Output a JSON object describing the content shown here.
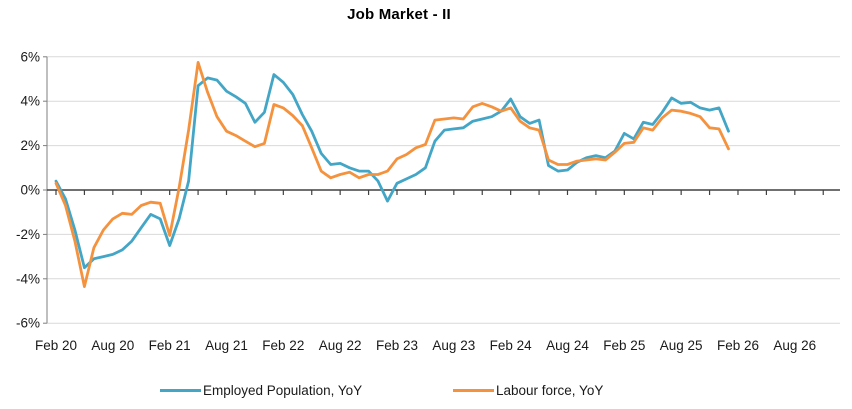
{
  "chart_data": {
    "type": "line",
    "title": "Job Market - II",
    "xlabel": "",
    "ylabel": "",
    "ylim": [
      -6,
      6
    ],
    "grid": "horizontal",
    "legend_position": "bottom",
    "frequency": "monthly",
    "start_label": "Feb 20",
    "end_label": "Jan 26",
    "x_tick_labels": [
      "Feb 20",
      "Aug 20",
      "Feb 21",
      "Aug 21",
      "Feb 22",
      "Aug 22",
      "Feb 23",
      "Aug 23",
      "Feb 24",
      "Aug 24",
      "Feb 25",
      "Aug 25",
      "Feb 26",
      "Aug 26"
    ],
    "y_tick_labels": [
      "6%",
      "4%",
      "2%",
      "0%",
      "-2%",
      "-4%",
      "-6%"
    ],
    "y_tick_values": [
      6,
      4,
      2,
      0,
      -2,
      -4,
      -6
    ],
    "series": [
      {
        "name": "Employed Population, YoY",
        "color": "#44a6c6",
        "values": [
          0.4,
          -0.4,
          -1.8,
          -3.5,
          -3.1,
          -3.0,
          -2.9,
          -2.7,
          -2.3,
          -1.7,
          -1.1,
          -1.3,
          -2.5,
          -1.3,
          0.4,
          4.7,
          5.05,
          4.95,
          4.45,
          4.2,
          3.9,
          3.05,
          3.5,
          5.2,
          4.85,
          4.3,
          3.4,
          2.65,
          1.65,
          1.15,
          1.2,
          1.0,
          0.85,
          0.85,
          0.4,
          -0.5,
          0.3,
          0.5,
          0.7,
          1.0,
          2.2,
          2.7,
          2.75,
          2.8,
          3.1,
          3.2,
          3.3,
          3.55,
          4.1,
          3.3,
          3.0,
          3.15,
          1.1,
          0.85,
          0.9,
          1.25,
          1.45,
          1.55,
          1.45,
          1.75,
          2.55,
          2.3,
          3.05,
          2.95,
          3.5,
          4.15,
          3.9,
          3.95,
          3.7,
          3.6,
          3.7,
          2.65
        ]
      },
      {
        "name": "Labour force, YoY",
        "color": "#f5923e",
        "values": [
          0.3,
          -0.7,
          -2.3,
          -4.35,
          -2.6,
          -1.8,
          -1.3,
          -1.05,
          -1.1,
          -0.7,
          -0.55,
          -0.6,
          -2.05,
          0.1,
          2.7,
          5.75,
          4.4,
          3.3,
          2.65,
          2.45,
          2.2,
          1.95,
          2.1,
          3.85,
          3.7,
          3.35,
          2.9,
          1.9,
          0.85,
          0.55,
          0.7,
          0.8,
          0.55,
          0.7,
          0.7,
          0.85,
          1.4,
          1.6,
          1.9,
          2.05,
          3.15,
          3.2,
          3.25,
          3.2,
          3.75,
          3.9,
          3.75,
          3.55,
          3.7,
          3.1,
          2.8,
          2.7,
          1.35,
          1.15,
          1.15,
          1.3,
          1.35,
          1.4,
          1.35,
          1.7,
          2.1,
          2.15,
          2.8,
          2.7,
          3.25,
          3.6,
          3.55,
          3.45,
          3.3,
          2.8,
          2.75,
          1.85
        ]
      }
    ],
    "colors": {
      "gridline": "#d9d9d9",
      "zero_axis": "#404040",
      "y_axis": "#7f7f7f",
      "tick_label": "#1a1a1a",
      "title": "#000000"
    }
  }
}
